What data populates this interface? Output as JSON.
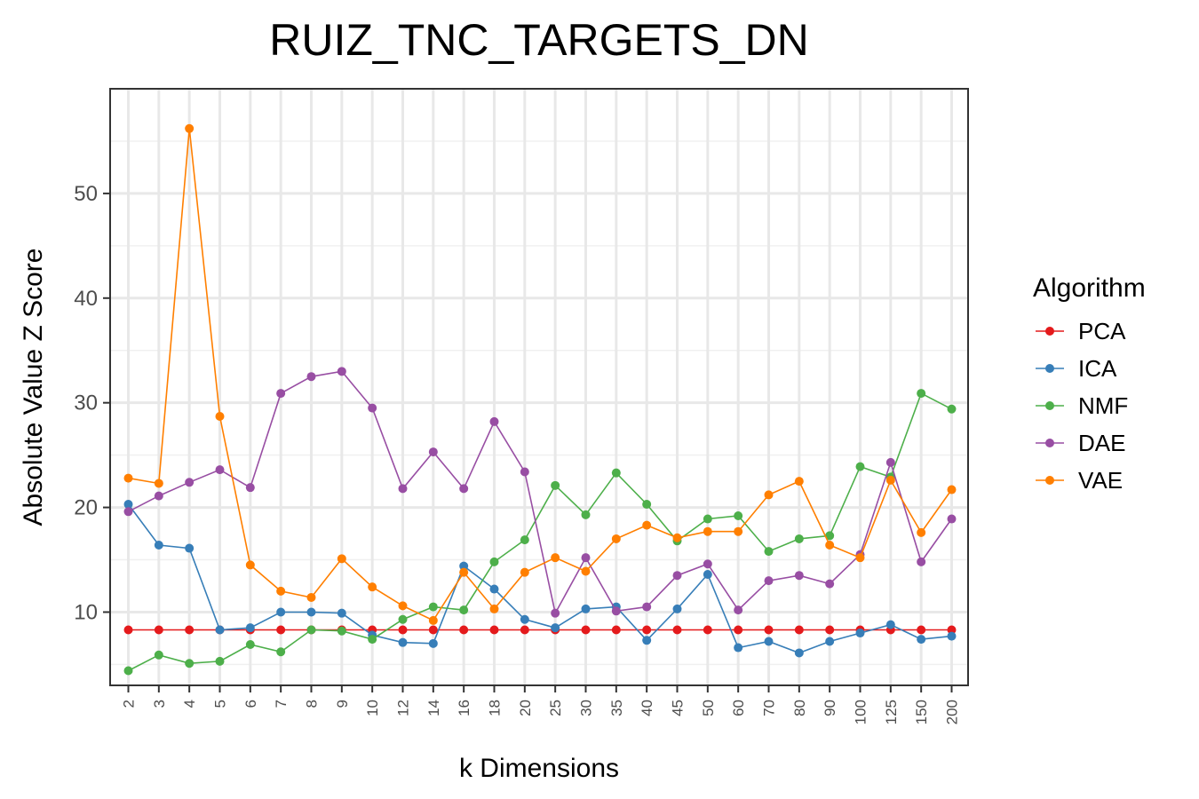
{
  "chart_data": {
    "type": "line",
    "title": "RUIZ_TNC_TARGETS_DN",
    "xlabel": "k Dimensions",
    "ylabel": "Absolute Value Z Score",
    "categories": [
      "2",
      "3",
      "4",
      "5",
      "6",
      "7",
      "8",
      "9",
      "10",
      "12",
      "14",
      "16",
      "18",
      "20",
      "25",
      "30",
      "35",
      "40",
      "45",
      "50",
      "60",
      "70",
      "80",
      "90",
      "100",
      "125",
      "150",
      "200"
    ],
    "ylim": [
      3,
      60
    ],
    "yticks": [
      10,
      20,
      30,
      40,
      50
    ],
    "grid": true,
    "legend_title": "Algorithm",
    "legend_position": "right",
    "series": [
      {
        "name": "PCA",
        "color": "#e41a1c",
        "values": [
          8.3,
          8.3,
          8.3,
          8.3,
          8.3,
          8.3,
          8.3,
          8.3,
          8.3,
          8.3,
          8.3,
          8.3,
          8.3,
          8.3,
          8.3,
          8.3,
          8.3,
          8.3,
          8.3,
          8.3,
          8.3,
          8.3,
          8.3,
          8.3,
          8.3,
          8.3,
          8.3,
          8.3
        ]
      },
      {
        "name": "ICA",
        "color": "#377eb8",
        "values": [
          20.3,
          16.4,
          16.1,
          8.3,
          8.5,
          10.0,
          10.0,
          9.9,
          7.8,
          7.1,
          7.0,
          14.4,
          12.2,
          9.3,
          8.5,
          10.3,
          10.5,
          7.3,
          10.3,
          13.6,
          6.6,
          7.2,
          6.1,
          7.2,
          8.0,
          8.8,
          7.4,
          7.7
        ]
      },
      {
        "name": "NMF",
        "color": "#4daf4a",
        "values": [
          4.4,
          5.9,
          5.1,
          5.3,
          6.9,
          6.2,
          8.3,
          8.2,
          7.4,
          9.3,
          10.5,
          10.2,
          14.8,
          16.9,
          22.1,
          19.3,
          23.3,
          20.3,
          16.8,
          18.9,
          19.2,
          15.8,
          17.0,
          17.3,
          23.9,
          22.9,
          30.9,
          29.4
        ]
      },
      {
        "name": "DAE",
        "color": "#984ea3",
        "values": [
          19.6,
          21.1,
          22.4,
          23.6,
          21.9,
          30.9,
          32.5,
          33.0,
          29.5,
          21.8,
          25.3,
          21.8,
          28.2,
          23.4,
          9.9,
          15.2,
          10.1,
          10.5,
          13.5,
          14.6,
          10.2,
          13.0,
          13.5,
          12.7,
          15.5,
          24.3,
          14.8,
          18.9
        ]
      },
      {
        "name": "VAE",
        "color": "#ff7f00",
        "values": [
          22.8,
          22.3,
          56.2,
          28.7,
          14.5,
          12.0,
          11.4,
          15.1,
          12.4,
          10.6,
          9.2,
          13.8,
          10.3,
          13.8,
          15.2,
          13.9,
          17.0,
          18.3,
          17.1,
          17.7,
          17.7,
          21.2,
          22.5,
          16.4,
          15.2,
          22.6,
          17.6,
          21.7
        ]
      }
    ]
  }
}
